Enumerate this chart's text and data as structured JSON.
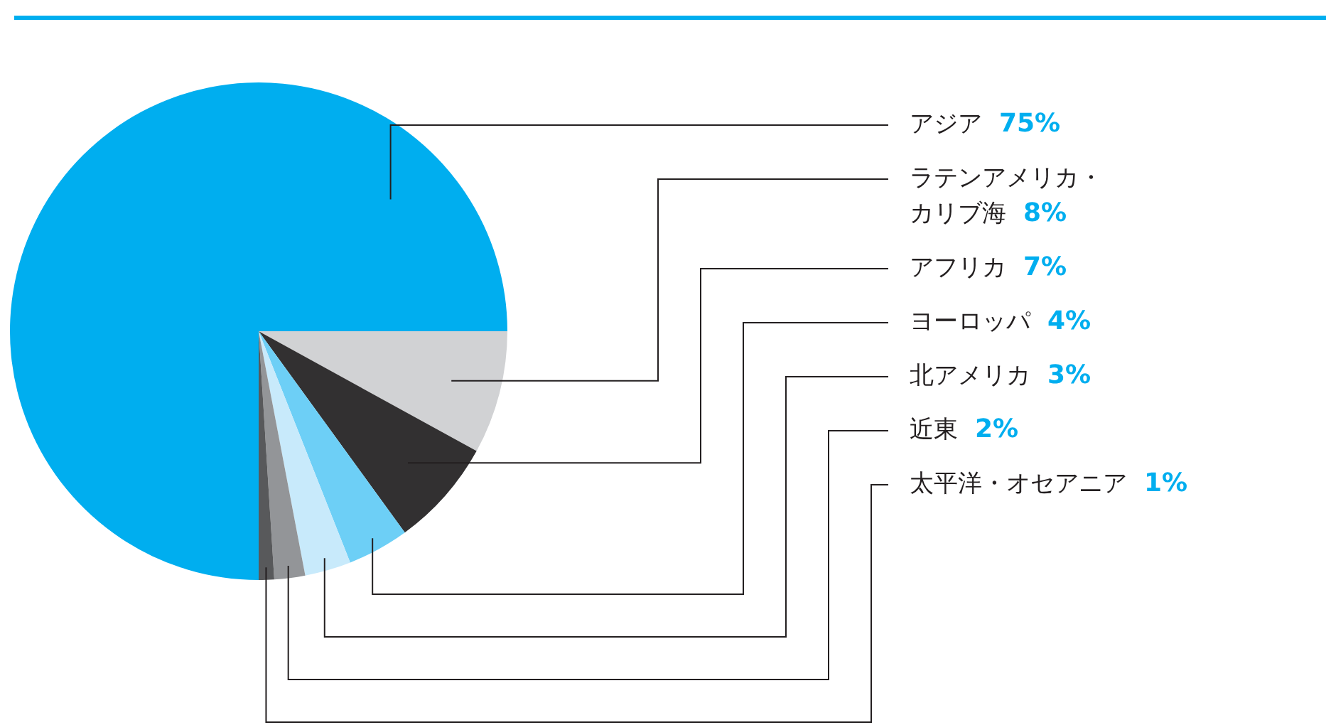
{
  "chart_data": {
    "type": "pie",
    "categories": [
      "アジア",
      "ラテンアメリカ・カリブ海",
      "アフリカ",
      "ヨーロッパ",
      "北アメリカ",
      "近東",
      "太平洋・オセアニア"
    ],
    "values": [
      75,
      8,
      7,
      4,
      3,
      2,
      1
    ],
    "value_labels": [
      "75%",
      "8%",
      "7%",
      "4%",
      "3%",
      "2%",
      "1%"
    ],
    "colors": [
      "#00aeef",
      "#d1d2d4",
      "#323031",
      "#6dcff6",
      "#c8eafb",
      "#939598",
      "#58595b"
    ],
    "legend": false
  }
}
